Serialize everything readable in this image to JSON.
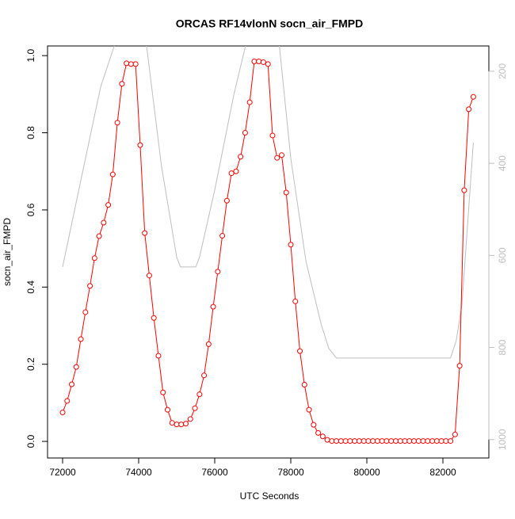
{
  "chart_data": {
    "type": "line",
    "title": "ORCAS RF14vlonN socn_air_FMPD",
    "x_label": "UTC Seconds",
    "y_label": "socn_air_FMPD",
    "xlim": [
      71604,
      83208
    ],
    "xticks": [
      72000,
      74000,
      76000,
      78000,
      80000,
      82000
    ],
    "ylim": [
      -0.043,
      1.025
    ],
    "yticks": [
      {
        "value": 0,
        "label": "0.0"
      },
      0.2,
      0.4,
      0.6,
      0.8,
      {
        "value": 1,
        "label": "1.0"
      }
    ],
    "y2lim": [
      1040,
      145
    ],
    "y2ticks": [
      200,
      400,
      600,
      800,
      1000
    ],
    "series": [
      {
        "name": "socn_air_FMPD",
        "color": "#ff0000",
        "markers": true,
        "x": [
          72000,
          72120,
          72240,
          72360,
          72480,
          72600,
          72720,
          72840,
          72960,
          73080,
          73200,
          73320,
          73440,
          73560,
          73680,
          73800,
          73920,
          74040,
          74160,
          74280,
          74400,
          74520,
          74640,
          74760,
          74880,
          75000,
          75120,
          75240,
          75360,
          75480,
          75600,
          75720,
          75840,
          75960,
          76080,
          76200,
          76320,
          76440,
          76560,
          76680,
          76800,
          76920,
          77040,
          77160,
          77280,
          77400,
          77520,
          77640,
          77760,
          77880,
          78000,
          78120,
          78240,
          78360,
          78480,
          78600,
          78720,
          78840,
          78960,
          79080,
          79200,
          79320,
          79440,
          79560,
          79680,
          79800,
          79920,
          80040,
          80160,
          80280,
          80400,
          80520,
          80640,
          80760,
          80880,
          81000,
          81120,
          81240,
          81360,
          81480,
          81600,
          81720,
          81840,
          81960,
          82080,
          82200,
          82320,
          82440,
          82560,
          82680,
          82800
        ],
        "values": [
          0.075,
          0.105,
          0.148,
          0.193,
          0.265,
          0.335,
          0.403,
          0.475,
          0.532,
          0.567,
          0.613,
          0.692,
          0.826,
          0.927,
          0.98,
          0.978,
          0.978,
          0.768,
          0.54,
          0.43,
          0.32,
          0.222,
          0.127,
          0.082,
          0.048,
          0.044,
          0.044,
          0.046,
          0.058,
          0.086,
          0.122,
          0.171,
          0.252,
          0.349,
          0.44,
          0.533,
          0.624,
          0.695,
          0.7,
          0.738,
          0.8,
          0.879,
          0.985,
          0.985,
          0.983,
          0.978,
          0.793,
          0.735,
          0.742,
          0.645,
          0.51,
          0.363,
          0.234,
          0.147,
          0.082,
          0.043,
          0.022,
          0.013,
          0.004,
          0.001,
          0.001,
          0.001,
          0.001,
          0.001,
          0.001,
          0.001,
          0.001,
          0.001,
          0.001,
          0.001,
          0.001,
          0.001,
          0.001,
          0.001,
          0.001,
          0.001,
          0.001,
          0.001,
          0.001,
          0.001,
          0.001,
          0.001,
          0.001,
          0.001,
          0.001,
          0.001,
          0.018,
          0.196,
          0.651,
          0.861,
          0.893
        ]
      },
      {
        "color": "#bebebe",
        "axis": "y2",
        "markers": false,
        "x": [
          72000,
          72500,
          73000,
          73700,
          74208,
          74600,
          75000,
          75100,
          75500,
          75600,
          76000,
          76500,
          76900,
          77200,
          77700,
          78000,
          78400,
          78800,
          79000,
          79200,
          82200,
          82350,
          82500,
          82800
        ],
        "values": [
          625,
          429,
          234,
          60,
          145,
          406,
          604,
          625,
          625,
          604,
          458,
          252,
          114,
          60,
          145,
          389,
          613,
          750,
          802,
          823,
          823,
          785,
          707,
          355
        ]
      }
    ]
  }
}
